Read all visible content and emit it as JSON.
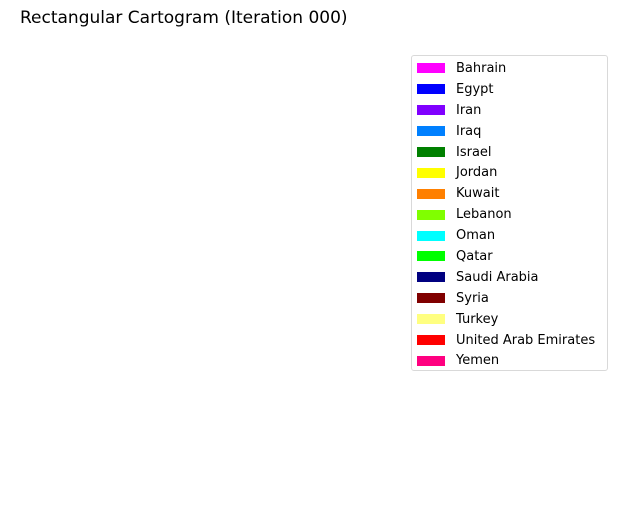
{
  "chart_data": {
    "type": "other",
    "title": "Rectangular Cartogram (Iteration 000)",
    "legend_position": "top-right",
    "series": [
      {
        "name": "Bahrain",
        "color": "#ff00ff"
      },
      {
        "name": "Egypt",
        "color": "#0000ff"
      },
      {
        "name": "Iran",
        "color": "#8000ff"
      },
      {
        "name": "Iraq",
        "color": "#0080ff"
      },
      {
        "name": "Israel",
        "color": "#008000"
      },
      {
        "name": "Jordan",
        "color": "#ffff00"
      },
      {
        "name": "Kuwait",
        "color": "#ff8000"
      },
      {
        "name": "Lebanon",
        "color": "#80ff00"
      },
      {
        "name": "Oman",
        "color": "#00ffff"
      },
      {
        "name": "Qatar",
        "color": "#00ff00"
      },
      {
        "name": "Saudi Arabia",
        "color": "#000080"
      },
      {
        "name": "Syria",
        "color": "#800000"
      },
      {
        "name": "Turkey",
        "color": "#ffff80"
      },
      {
        "name": "United Arab Emirates",
        "color": "#ff0000"
      },
      {
        "name": "Yemen",
        "color": "#ff0080"
      }
    ]
  }
}
